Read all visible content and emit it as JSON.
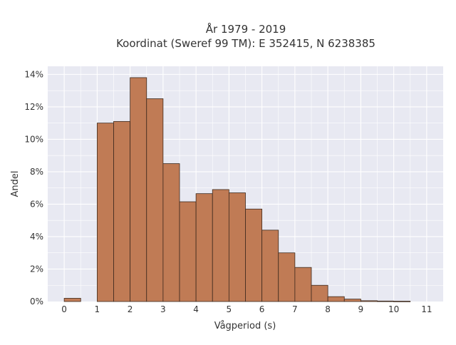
{
  "chart_data": {
    "type": "bar",
    "title_lines": [
      "År 1979 - 2019",
      "Koordinat (Sweref 99 TM): E 352415, N 6238385"
    ],
    "xlabel": "Vågperiod (s)",
    "ylabel": "Andel",
    "bin_width": 0.5,
    "bins": [
      {
        "x0": 0.0,
        "value": 0.2
      },
      {
        "x0": 0.5,
        "value": 0.0
      },
      {
        "x0": 1.0,
        "value": 11.0
      },
      {
        "x0": 1.5,
        "value": 11.1
      },
      {
        "x0": 2.0,
        "value": 13.8
      },
      {
        "x0": 2.5,
        "value": 12.5
      },
      {
        "x0": 3.0,
        "value": 8.5
      },
      {
        "x0": 3.5,
        "value": 6.15
      },
      {
        "x0": 4.0,
        "value": 6.65
      },
      {
        "x0": 4.5,
        "value": 6.9
      },
      {
        "x0": 5.0,
        "value": 6.7
      },
      {
        "x0": 5.5,
        "value": 5.7
      },
      {
        "x0": 6.0,
        "value": 4.4
      },
      {
        "x0": 6.5,
        "value": 3.0
      },
      {
        "x0": 7.0,
        "value": 2.1
      },
      {
        "x0": 7.5,
        "value": 1.0
      },
      {
        "x0": 8.0,
        "value": 0.3
      },
      {
        "x0": 8.5,
        "value": 0.15
      },
      {
        "x0": 9.0,
        "value": 0.05
      },
      {
        "x0": 9.5,
        "value": 0.03
      },
      {
        "x0": 10.0,
        "value": 0.02
      }
    ],
    "xlim": [
      -0.5,
      11.5
    ],
    "ylim": [
      0,
      14.5
    ],
    "x_ticks": [
      "0",
      "1",
      "2",
      "3",
      "4",
      "5",
      "6",
      "7",
      "8",
      "9",
      "10",
      "11"
    ],
    "y_ticks": [
      "0%",
      "2%",
      "4%",
      "6%",
      "8%",
      "10%",
      "12%",
      "14%"
    ],
    "grid": true,
    "colors": {
      "bar_fill": "#c07b55",
      "bar_stroke": "#3d2a1e",
      "plot_bg": "#e8e9f2",
      "grid": "#ffffff"
    }
  }
}
